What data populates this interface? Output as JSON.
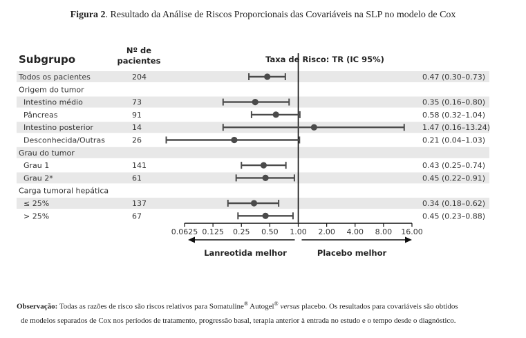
{
  "figure": {
    "label": "Figura 2",
    "title": ". Resultado da Análise de Riscos Proporcionais das Covariáveis na SLP no modelo de Cox"
  },
  "note": {
    "label": "Observação:",
    "line1_a": " Todas as razões de risco são riscos relativos para Somatuline",
    "reg1": "®",
    "line1_b": " Autogel",
    "reg2": "®",
    "versus": "versus",
    "line1_c": " placebo. Os resultados para covariáveis são obtidos",
    "line2": "de modelos separados de Cox nos períodos de tratamento, progressão basal, terapia anterior à entrada no estudo e o tempo desde o diagnóstico."
  },
  "colors": {
    "band": "#e8e8e8",
    "marker": "#4a4a4a",
    "text": "#333333",
    "refline": "#111111"
  },
  "chart_data": {
    "type": "forest",
    "header_subgroup": "Subgrupo",
    "header_n_line1": "Nº de",
    "header_n_line2": "pacientes",
    "header_effect": "Taxa de Risco: TR (IC 95%)",
    "x_scale": "log2",
    "xlim": [
      0.0625,
      16.0
    ],
    "reference": 1.0,
    "x_ticks": [
      0.0625,
      0.125,
      0.25,
      0.5,
      1.0,
      2.0,
      4.0,
      8.0,
      16.0
    ],
    "x_tick_labels": [
      "0.0625",
      "0.125",
      "0.25",
      "0.50",
      "1.00",
      "2.00",
      "4.00",
      "8.00",
      "16.00"
    ],
    "left_label": "Lanreotida melhor",
    "right_label": "Placebo melhor",
    "rows": [
      {
        "label": "Todos os pacientes",
        "indent": 0,
        "n": "204",
        "hr": 0.47,
        "lo": 0.3,
        "hi": 0.73,
        "text": "0.47 (0.30–0.73)",
        "band": true
      },
      {
        "label": "Origem do tumor",
        "indent": 0,
        "header": true,
        "band": false
      },
      {
        "label": "Intestino médio",
        "indent": 1,
        "n": "73",
        "hr": 0.35,
        "lo": 0.16,
        "hi": 0.8,
        "text": "0.35 (0.16–0.80)",
        "band": true
      },
      {
        "label": "Pâncreas",
        "indent": 1,
        "n": "91",
        "hr": 0.58,
        "lo": 0.32,
        "hi": 1.04,
        "text": "0.58 (0.32–1.04)",
        "band": false
      },
      {
        "label": "Intestino posterior",
        "indent": 1,
        "n": "14",
        "hr": 1.47,
        "lo": 0.16,
        "hi": 13.24,
        "text": "1.47 (0.16–13.24)",
        "band": true
      },
      {
        "label": "Desconhecida/Outras",
        "indent": 1,
        "n": "26",
        "hr": 0.21,
        "lo": 0.04,
        "hi": 1.03,
        "text": "0.21 (0.04–1.03)",
        "band": false
      },
      {
        "label": "Grau do tumor",
        "indent": 0,
        "header": true,
        "band": true
      },
      {
        "label": "Grau 1",
        "indent": 1,
        "n": "141",
        "hr": 0.43,
        "lo": 0.25,
        "hi": 0.74,
        "text": "0.43 (0.25–0.74)",
        "band": false
      },
      {
        "label": "Grau 2*",
        "indent": 1,
        "n": "61",
        "hr": 0.45,
        "lo": 0.22,
        "hi": 0.91,
        "text": "0.45 (0.22–0.91)",
        "band": true
      },
      {
        "label": "Carga tumoral hepática",
        "indent": 0,
        "header": true,
        "band": false
      },
      {
        "label": "≤ 25%",
        "indent": 1,
        "n": "137",
        "hr": 0.34,
        "lo": 0.18,
        "hi": 0.62,
        "text": "0.34 (0.18–0.62)",
        "band": true
      },
      {
        "label": "> 25%",
        "indent": 1,
        "n": "67",
        "hr": 0.45,
        "lo": 0.23,
        "hi": 0.88,
        "text": "0.45 (0.23–0.88)",
        "band": false
      }
    ]
  }
}
